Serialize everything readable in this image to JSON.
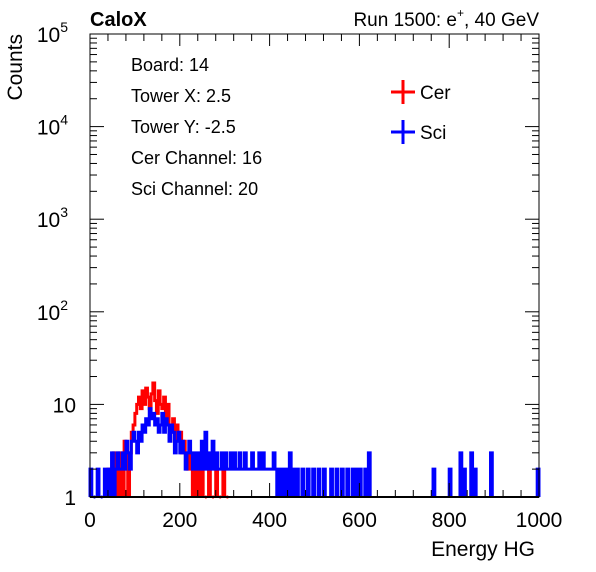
{
  "header": {
    "left_label": "CaloX",
    "right_label_prefix": "Run 1500: e",
    "right_label_sup": "+",
    "right_label_suffix": ", 40 GeV"
  },
  "info_box": {
    "lines": [
      "Board: 14",
      "Tower X: 2.5",
      "Tower Y: -2.5",
      "Cer Channel: 16",
      "Sci Channel: 20"
    ]
  },
  "chart_data": {
    "type": "histogram",
    "title": "",
    "xlabel": "Energy HG",
    "ylabel": "Counts",
    "xlim": [
      0,
      1000
    ],
    "ylim": [
      1,
      100000
    ],
    "yscale": "log",
    "x_ticks": [
      0,
      200,
      400,
      600,
      800,
      1000
    ],
    "x_tick_labels": [
      "0",
      "200",
      "400",
      "600",
      "800",
      "1000"
    ],
    "y_ticks": [
      1,
      10,
      100,
      1000,
      10000,
      100000
    ],
    "y_tick_labels": [
      {
        "text": "1",
        "exp": ""
      },
      {
        "text": "10",
        "exp": ""
      },
      {
        "text": "10",
        "exp": "2"
      },
      {
        "text": "10",
        "exp": "3"
      },
      {
        "text": "10",
        "exp": "4"
      },
      {
        "text": "10",
        "exp": "5"
      }
    ],
    "grid": false,
    "legend_position": "top-right",
    "series": [
      {
        "name": "Cer",
        "color": "#ff0000",
        "bins": [
          [
            40,
            2
          ],
          [
            48,
            2
          ],
          [
            52,
            3
          ],
          [
            56,
            2
          ],
          [
            64,
            3
          ],
          [
            70,
            3
          ],
          [
            76,
            4
          ],
          [
            80,
            3
          ],
          [
            88,
            3
          ],
          [
            92,
            5
          ],
          [
            96,
            6
          ],
          [
            100,
            8
          ],
          [
            104,
            10
          ],
          [
            108,
            12
          ],
          [
            112,
            9
          ],
          [
            116,
            14
          ],
          [
            120,
            10
          ],
          [
            124,
            15
          ],
          [
            128,
            12
          ],
          [
            132,
            9
          ],
          [
            136,
            13
          ],
          [
            140,
            17
          ],
          [
            144,
            11
          ],
          [
            148,
            8
          ],
          [
            152,
            14
          ],
          [
            156,
            10
          ],
          [
            160,
            9
          ],
          [
            164,
            12
          ],
          [
            168,
            7
          ],
          [
            172,
            10
          ],
          [
            176,
            6
          ],
          [
            180,
            5
          ],
          [
            184,
            7
          ],
          [
            188,
            4
          ],
          [
            192,
            6
          ],
          [
            196,
            5
          ],
          [
            200,
            5
          ],
          [
            204,
            3
          ],
          [
            208,
            4
          ],
          [
            212,
            3
          ],
          [
            216,
            2
          ],
          [
            220,
            3
          ],
          [
            224,
            2
          ],
          [
            232,
            2
          ],
          [
            240,
            2
          ],
          [
            248,
            2
          ],
          [
            256,
            1
          ],
          [
            264,
            2
          ],
          [
            272,
            1
          ],
          [
            280,
            2
          ],
          [
            288,
            1
          ],
          [
            296,
            2
          ],
          [
            304,
            1
          ]
        ]
      },
      {
        "name": "Sci",
        "color": "#0000ff",
        "bins": [
          [
            0,
            2
          ],
          [
            8,
            1
          ],
          [
            16,
            2
          ],
          [
            24,
            1
          ],
          [
            32,
            2
          ],
          [
            40,
            2
          ],
          [
            48,
            3
          ],
          [
            56,
            2
          ],
          [
            60,
            3
          ],
          [
            64,
            2
          ],
          [
            68,
            2
          ],
          [
            72,
            3
          ],
          [
            76,
            2
          ],
          [
            80,
            4
          ],
          [
            84,
            3
          ],
          [
            88,
            2
          ],
          [
            92,
            4
          ],
          [
            96,
            5
          ],
          [
            100,
            4
          ],
          [
            104,
            3
          ],
          [
            108,
            5
          ],
          [
            112,
            4
          ],
          [
            116,
            6
          ],
          [
            120,
            5
          ],
          [
            124,
            7
          ],
          [
            128,
            6
          ],
          [
            132,
            9
          ],
          [
            136,
            7
          ],
          [
            140,
            8
          ],
          [
            144,
            6
          ],
          [
            148,
            7
          ],
          [
            152,
            5
          ],
          [
            156,
            6
          ],
          [
            160,
            8
          ],
          [
            164,
            5
          ],
          [
            168,
            7
          ],
          [
            172,
            6
          ],
          [
            176,
            4
          ],
          [
            180,
            6
          ],
          [
            184,
            5
          ],
          [
            188,
            3
          ],
          [
            192,
            4
          ],
          [
            196,
            5
          ],
          [
            200,
            3
          ],
          [
            204,
            4
          ],
          [
            208,
            3
          ],
          [
            212,
            2
          ],
          [
            216,
            3
          ],
          [
            220,
            4
          ],
          [
            224,
            3
          ],
          [
            228,
            2
          ],
          [
            232,
            3
          ],
          [
            236,
            2
          ],
          [
            240,
            3
          ],
          [
            244,
            2
          ],
          [
            248,
            4
          ],
          [
            252,
            2
          ],
          [
            256,
            5
          ],
          [
            260,
            2
          ],
          [
            264,
            3
          ],
          [
            268,
            2
          ],
          [
            272,
            4
          ],
          [
            276,
            2
          ],
          [
            280,
            3
          ],
          [
            284,
            2
          ],
          [
            288,
            2
          ],
          [
            292,
            3
          ],
          [
            296,
            2
          ],
          [
            300,
            3
          ],
          [
            304,
            2
          ],
          [
            308,
            2
          ],
          [
            312,
            3
          ],
          [
            316,
            2
          ],
          [
            320,
            3
          ],
          [
            324,
            2
          ],
          [
            328,
            2
          ],
          [
            332,
            3
          ],
          [
            336,
            2
          ],
          [
            340,
            2
          ],
          [
            344,
            3
          ],
          [
            348,
            2
          ],
          [
            352,
            2
          ],
          [
            356,
            2
          ],
          [
            360,
            3
          ],
          [
            364,
            2
          ],
          [
            368,
            2
          ],
          [
            372,
            2
          ],
          [
            376,
            3
          ],
          [
            380,
            2
          ],
          [
            384,
            3
          ],
          [
            388,
            2
          ],
          [
            392,
            2
          ],
          [
            396,
            2
          ],
          [
            400,
            2
          ],
          [
            404,
            2
          ],
          [
            408,
            3
          ],
          [
            412,
            2
          ],
          [
            420,
            2
          ],
          [
            428,
            2
          ],
          [
            436,
            2
          ],
          [
            444,
            3
          ],
          [
            452,
            2
          ],
          [
            460,
            2
          ],
          [
            472,
            2
          ],
          [
            484,
            2
          ],
          [
            496,
            2
          ],
          [
            508,
            2
          ],
          [
            520,
            2
          ],
          [
            536,
            2
          ],
          [
            548,
            2
          ],
          [
            560,
            2
          ],
          [
            572,
            2
          ],
          [
            584,
            2
          ],
          [
            592,
            2
          ],
          [
            600,
            2
          ],
          [
            612,
            2
          ],
          [
            620,
            3
          ],
          [
            764,
            2
          ],
          [
            800,
            2
          ],
          [
            824,
            3
          ],
          [
            832,
            2
          ],
          [
            848,
            3
          ],
          [
            856,
            2
          ],
          [
            892,
            3
          ],
          [
            996,
            2
          ]
        ]
      }
    ]
  }
}
